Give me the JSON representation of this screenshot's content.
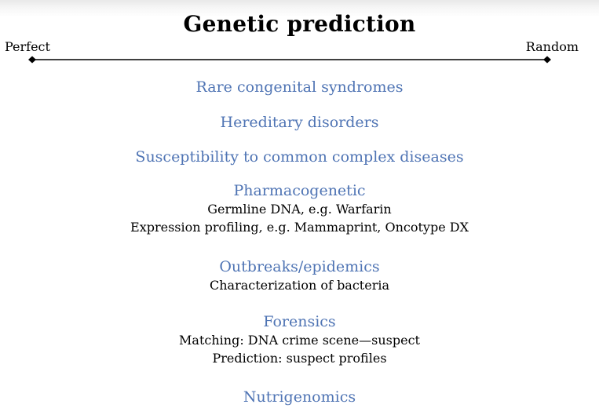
{
  "title": "Genetic prediction",
  "scale": {
    "left_label": "Perfect",
    "right_label": "Random"
  },
  "items": [
    {
      "heading": "Rare congenital syndromes",
      "details": []
    },
    {
      "heading": "Hereditary disorders",
      "details": []
    },
    {
      "heading": "Susceptibility to common complex diseases",
      "details": []
    },
    {
      "heading": "Pharmacogenetic",
      "details": [
        "Germline DNA, e.g. Warfarin",
        "Expression profiling, e.g. Mammaprint, Oncotype DX"
      ]
    },
    {
      "heading": "Outbreaks/epidemics",
      "details": [
        "Characterization of bacteria"
      ]
    },
    {
      "heading": "Forensics",
      "details": [
        "Matching: DNA crime scene—suspect",
        "Prediction: suspect profiles"
      ]
    },
    {
      "heading": "Nutrigenomics",
      "details": []
    }
  ],
  "colors": {
    "heading": "#4f74b4",
    "body_text": "#000000"
  }
}
